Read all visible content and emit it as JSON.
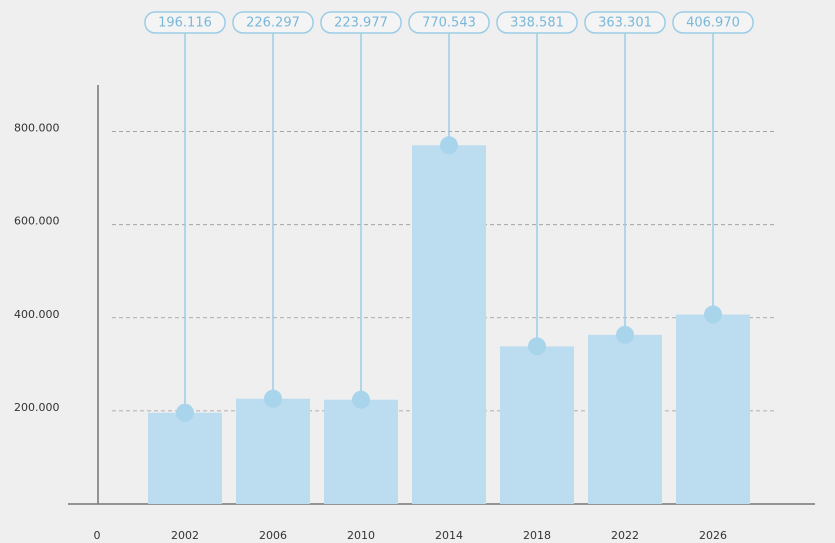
{
  "chart_data": {
    "type": "bar",
    "categories": [
      "2002",
      "2006",
      "2010",
      "2014",
      "2018",
      "2022",
      "2026"
    ],
    "values": [
      196116,
      226297,
      223977,
      770543,
      338581,
      363301,
      406970
    ],
    "value_labels": [
      "196.116",
      "226.297",
      "223.977",
      "770.543",
      "338.581",
      "363.301",
      "406.970"
    ],
    "color": "#bcdcf0",
    "ylim": [
      0,
      900000
    ],
    "yticks": [
      0,
      {
        "value": 200000,
        "label": "200.000"
      },
      {
        "value": 400000,
        "label": "400.000"
      },
      {
        "value": 600000,
        "label": "600.000"
      },
      {
        "value": 800000,
        "label": "800.000"
      }
    ],
    "grid": true
  }
}
